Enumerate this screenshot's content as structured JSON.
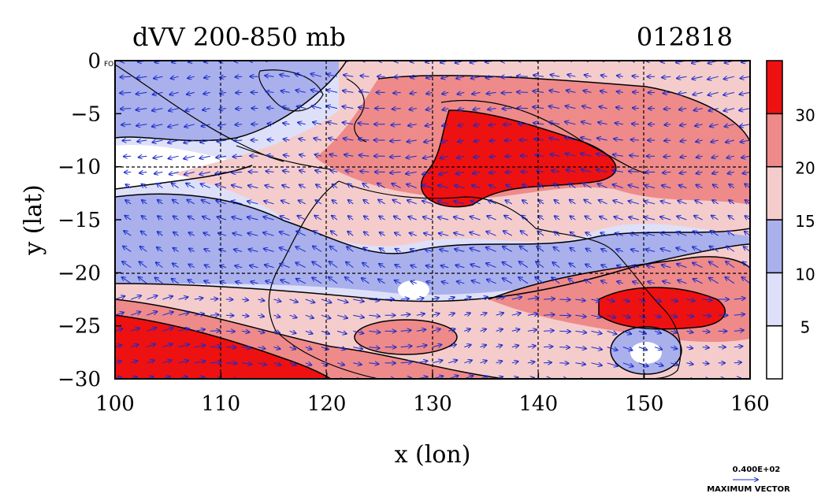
{
  "chart_data": {
    "type": "heatmap",
    "title": "dVV 200-850 mb",
    "date_label": "012818",
    "xlabel": "x (lon)",
    "ylabel": "y (lat)",
    "xlim": [
      100,
      160
    ],
    "ylim": [
      -30,
      0
    ],
    "x_ticks": [
      "100",
      "110",
      "120",
      "130",
      "140",
      "150",
      "160"
    ],
    "y_ticks": [
      "0",
      "−5",
      "−10",
      "−15",
      "−20",
      "−25",
      "−30"
    ],
    "grid": true,
    "colorbar": {
      "levels": [
        0,
        5,
        10,
        15,
        20,
        30,
        40
      ],
      "tick_labels": [
        "5",
        "10",
        "15",
        "20",
        "30"
      ],
      "colors": [
        "#ffffff",
        "#dde0f8",
        "#a9b0ec",
        "#f5cccc",
        "#ee8a8a",
        "#ee1111"
      ]
    },
    "vector_legend": {
      "value": "0.400E+02",
      "label": "MAXIMUM VECTOR"
    },
    "corner_mark": "FO"
  },
  "colors": {
    "vector": "#1a2bcc",
    "contour": "#000000"
  }
}
